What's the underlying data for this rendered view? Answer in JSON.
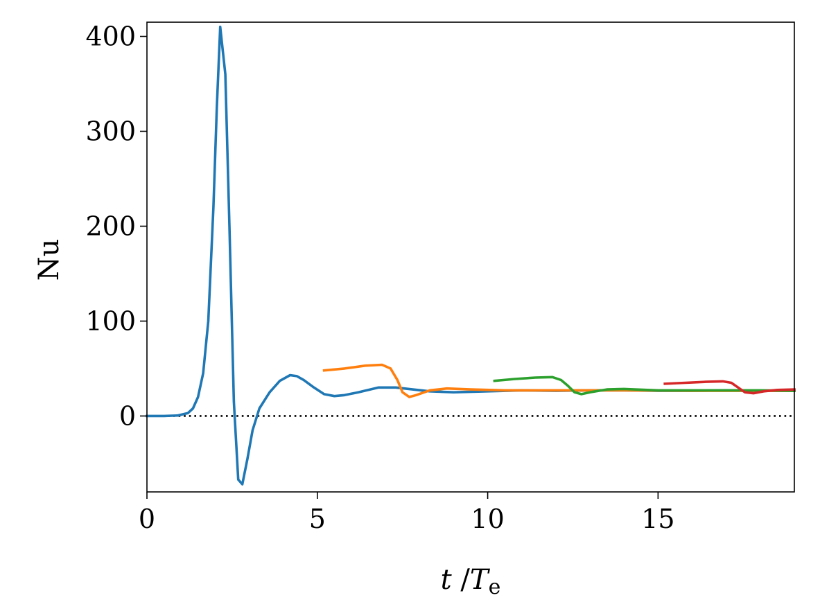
{
  "chart_data": {
    "type": "line",
    "xlim": [
      0,
      19
    ],
    "ylim": [
      -80,
      415
    ],
    "xticks": [
      0,
      5,
      10,
      15
    ],
    "yticks": [
      0,
      100,
      200,
      300,
      400
    ],
    "xlabel_main": "t",
    "xlabel_sep": " /",
    "xlabel_T": "T",
    "xlabel_sub": "e",
    "ylabel": "Nu",
    "grid": false,
    "legend": "none",
    "reference_line": {
      "y": 0,
      "style": "dotted",
      "color": "#000000"
    },
    "series": [
      {
        "color": "#1f77b4",
        "x": [
          0,
          0.5,
          0.9,
          1.2,
          1.35,
          1.5,
          1.65,
          1.8,
          1.95,
          2.05,
          2.15,
          2.3,
          2.42,
          2.55,
          2.68,
          2.8,
          2.95,
          3.1,
          3.3,
          3.6,
          3.9,
          4.2,
          4.4,
          4.6,
          4.9,
          5.2,
          5.5,
          5.8,
          6.2,
          6.8,
          7.3,
          7.8,
          8.3,
          9.0,
          10.0,
          11.0,
          12.0,
          13.0,
          14.0,
          15.0,
          16.0,
          17.0,
          18.0,
          19.0
        ],
        "y": [
          0,
          0,
          0.5,
          3,
          8,
          20,
          45,
          100,
          220,
          325,
          410,
          360,
          200,
          15,
          -67,
          -72,
          -45,
          -15,
          8,
          25,
          37,
          43,
          42,
          38,
          30,
          23,
          21,
          22,
          25,
          30,
          30,
          28,
          26,
          25,
          26,
          27,
          26.5,
          27,
          27,
          26.5,
          26.5,
          27,
          26.5,
          26.5
        ]
      },
      {
        "color": "#ff7f0e",
        "x": [
          5.2,
          5.8,
          6.4,
          6.9,
          7.15,
          7.35,
          7.5,
          7.7,
          7.9,
          8.3,
          8.8,
          9.5,
          10.5,
          12.0,
          14.0,
          16.0,
          18.0,
          19.0
        ],
        "y": [
          48,
          50,
          53,
          54,
          50,
          38,
          25,
          20,
          22,
          27,
          29,
          28,
          27,
          27,
          27,
          26.5,
          26.5,
          26.5
        ]
      },
      {
        "color": "#2ca02c",
        "x": [
          10.2,
          10.8,
          11.4,
          11.9,
          12.15,
          12.35,
          12.55,
          12.75,
          13.0,
          13.5,
          14.0,
          15.0,
          16.0,
          17.0,
          18.0,
          19.0
        ],
        "y": [
          37,
          39,
          40.5,
          41,
          38,
          32,
          25,
          23,
          25,
          28,
          28.5,
          27,
          27,
          27,
          27,
          26.5
        ]
      },
      {
        "color": "#d62728",
        "x": [
          15.2,
          15.8,
          16.4,
          16.9,
          17.15,
          17.35,
          17.55,
          17.8,
          18.1,
          18.5,
          19.0
        ],
        "y": [
          34,
          35,
          36,
          36.5,
          35,
          30,
          25,
          24,
          26,
          27.5,
          28
        ]
      }
    ]
  }
}
